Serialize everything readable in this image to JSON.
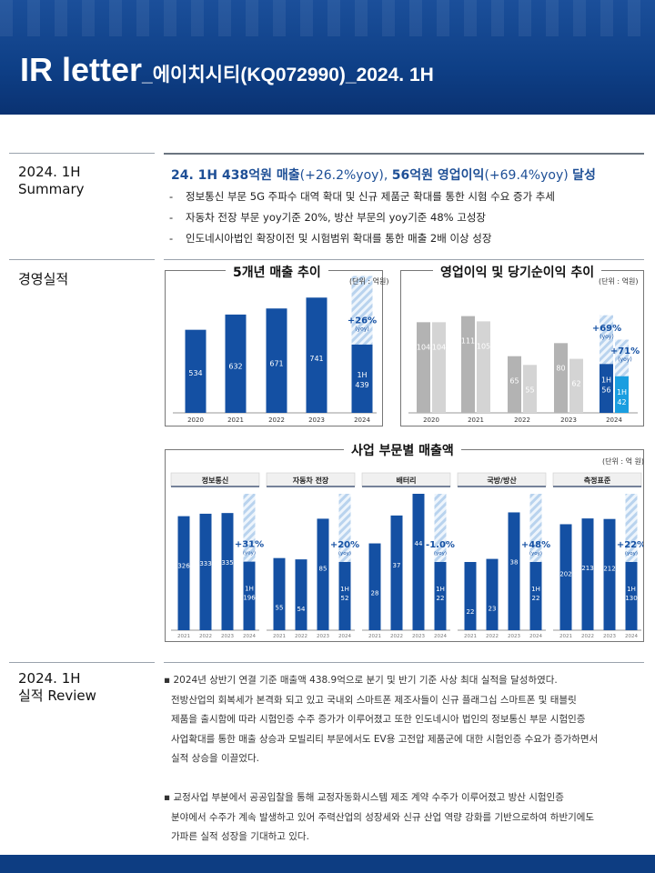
{
  "header": {
    "title_main": "IR letter",
    "title_sub": "_에이치시티(KQ072990)_2024. 1H"
  },
  "summary": {
    "label": "2024. 1H\nSummary",
    "label_line1": "2024. 1H",
    "label_line2": "Summary",
    "headline_a": "24. 1H 438억원 매출",
    "headline_b": "(+26.2%yoy), ",
    "headline_c": "56억원 영업이익",
    "headline_d": "(+69.4%yoy) ",
    "headline_e": "달성",
    "bullets": [
      "정보통신 부문 5G 주파수 대역 확대 및 신규 제품군 확대를 통한 시험 수요 증가 추세",
      "자동차 전장 부문 yoy기준 20%, 방산 부문의 yoy기준 48% 고성장",
      "인도네시아법인 확장이전 및 시험범위 확대를 통한 매출 2배 이상 성장"
    ]
  },
  "performance": {
    "label": "경영실적",
    "revenue_panel_title": "5개년 매출 추이",
    "revenue_unit": "(단위 : 억원)",
    "profit_panel_title": "영업이익 및 당기순이익 추이",
    "profit_unit": "(단위 : 억원)",
    "segment_panel_title": "사업 부문별 매출액",
    "segment_unit": "(단위 : 억 원)"
  },
  "review": {
    "label_line1": "2024. 1H",
    "label_line2": "실적 Review",
    "paragraphs": [
      [
        "2024년 상반기 연결 기준 매출액 438.9억으로 분기 및 반기 기준 사상 최대 실적을 달성하였다.",
        "전방산업의 회복세가 본격화 되고 있고 국내외 스마트폰 제조사들이 신규 플래그십 스마트폰 및 태블릿",
        "제품을 출시함에 따라 시험인증 수주 증가가 이루어졌고 또한 인도네시아 법인의 정보통신 부문 시험인증",
        "사업확대를 통한 매출 상승과 모빌리티 부문에서도 EV용 고전압 제품군에 대한 시험인증 수요가 증가하면서",
        "실적 상승을 이끌었다."
      ],
      [
        "교정사업 부분에서 공공입찰을 통해 교정자동화시스템 제조 계약 수주가 이루어졌고 방산 시험인증",
        "분야에서 수주가 계속 발생하고 있어 주력산업의 성장세와 신규 산업 역량 강화를 기반으로하여 하반기에도",
        "가파른 실적 성장을 기대하고 있다."
      ]
    ]
  },
  "colors": {
    "brand_blue": "#1450a3",
    "hatch_blue": "#b9d3ee",
    "light_blue": "#1a9ee0",
    "grey_dark": "#b3b3b3",
    "grey_light": "#d4d4d4"
  },
  "chart_data": [
    {
      "type": "bar",
      "title": "5개년 매출 추이",
      "unit": "(단위 : 억원)",
      "categories": [
        "2020",
        "2021",
        "2022",
        "2023",
        "2024"
      ],
      "values": [
        534,
        632,
        671,
        741,
        439
      ],
      "value_labels": [
        "534",
        "632",
        "671",
        "741",
        "1H\n439"
      ],
      "projection_total_2024": 880,
      "annotation": "+26%",
      "annotation_sub": "(yoy)"
    },
    {
      "type": "bar",
      "title": "영업이익 및 당기순이익 추이",
      "unit": "(단위 : 억원)",
      "categories": [
        "2020",
        "2021",
        "2022",
        "2023",
        "2024"
      ],
      "series": [
        {
          "values": [
            104,
            111,
            65,
            80,
            56
          ],
          "labels": [
            "104",
            "111",
            "65",
            "80",
            "1H\n56"
          ]
        },
        {
          "values": [
            104,
            105,
            55,
            62,
            42
          ],
          "labels": [
            "104",
            "105",
            "55",
            "62",
            "1H\n42"
          ]
        }
      ],
      "annotations": [
        {
          "text": "+69%",
          "sub": "(yoy)"
        },
        {
          "text": "+71%",
          "sub": "(yoy)"
        }
      ]
    },
    {
      "type": "bar",
      "title": "사업 부문별 매출액",
      "unit": "(단위 : 억 원)",
      "groups": [
        {
          "name": "정보통신",
          "categories": [
            "2021",
            "2022",
            "2023",
            "2024"
          ],
          "values": [
            326,
            333,
            335,
            196
          ],
          "labels": [
            "326",
            "333",
            "335",
            "1H\n196"
          ],
          "growth": "+31%",
          "projection": 390
        },
        {
          "name": "자동차 전장",
          "categories": [
            "2021",
            "2022",
            "2023",
            "2024"
          ],
          "values": [
            55,
            54,
            85,
            52
          ],
          "labels": [
            "55",
            "54",
            "85",
            "1H\n52"
          ],
          "growth": "+20%",
          "projection": 104
        },
        {
          "name": "배터리",
          "categories": [
            "2021",
            "2022",
            "2023",
            "2024"
          ],
          "values": [
            28,
            37,
            44,
            22
          ],
          "labels": [
            "28",
            "37",
            "44",
            "1H\n22"
          ],
          "growth": "-1.0%",
          "projection": 44
        },
        {
          "name": "국방/방산",
          "categories": [
            "2021",
            "2022",
            "2023",
            "2024"
          ],
          "values": [
            22,
            23,
            38,
            22
          ],
          "labels": [
            "22",
            "23",
            "38",
            "1H\n22"
          ],
          "growth": "+48%",
          "projection": 44
        },
        {
          "name": "측정표준",
          "categories": [
            "2021",
            "2022",
            "2023",
            "2024"
          ],
          "values": [
            202,
            213,
            212,
            130
          ],
          "labels": [
            "202",
            "213",
            "212",
            "1H\n130"
          ],
          "growth": "+22%",
          "projection": 260
        }
      ],
      "growth_sub": "(yoy)"
    }
  ]
}
